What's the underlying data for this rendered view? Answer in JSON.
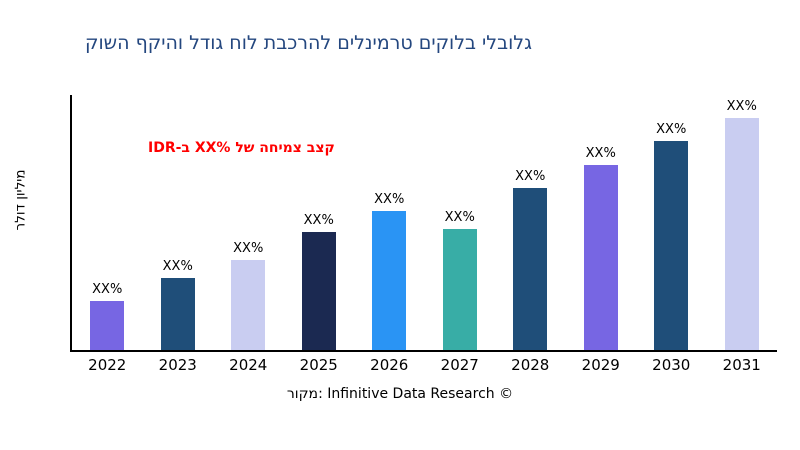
{
  "title": "קושה ףקיהו לדוג חול תבכרהל םילנימרט םיקולב ילבולג",
  "title_color": "#24477f",
  "annotation": {
    "text": "IDR-ב XX% לש החימצ בצק",
    "color": "#ff0000"
  },
  "y_axis_label": "רלוד ןוילימ",
  "footer": "רוקמ: Infinitive Data Research ©",
  "axis_color": "#000000",
  "chart_data": {
    "type": "bar",
    "title": "קושה ףקיהו לדוג חול תבכרהל םילנימרט םיקולב ילבולג",
    "xlabel": "",
    "ylabel": "רלוד ןוילימ",
    "categories": [
      "2022",
      "2023",
      "2024",
      "2025",
      "2026",
      "2027",
      "2028",
      "2029",
      "2030",
      "2031"
    ],
    "values": [
      21,
      31,
      39,
      51,
      60,
      52,
      70,
      80,
      90,
      100
    ],
    "bar_labels": [
      "XX%",
      "XX%",
      "XX%",
      "XX%",
      "XX%",
      "XX%",
      "XX%",
      "XX%",
      "XX%",
      "XX%"
    ],
    "colors": [
      "#7766e3",
      "#1f4e79",
      "#c9cdf1",
      "#1b2951",
      "#2a94f4",
      "#38ada6",
      "#1f4e79",
      "#7766e3",
      "#1f4e79",
      "#c9cdf1"
    ],
    "ylim": [
      0,
      110
    ],
    "grid": false,
    "legend": "none"
  }
}
